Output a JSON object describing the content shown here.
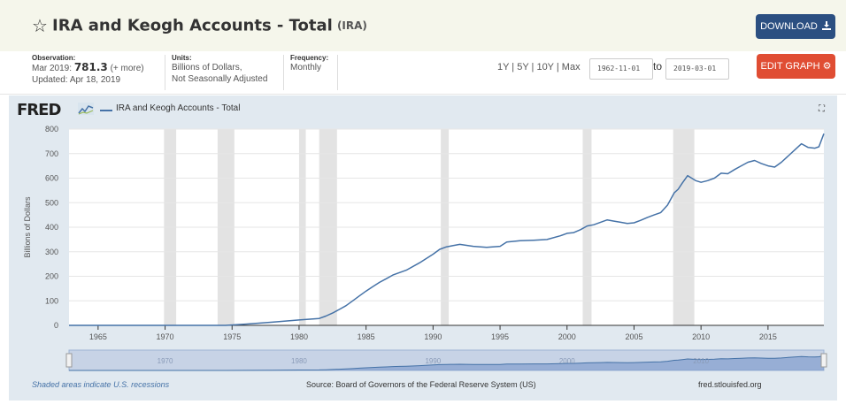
{
  "header": {
    "title": "IRA and Keogh Accounts - Total",
    "series_id": "(IRA)",
    "download_label": "DOWNLOAD"
  },
  "meta": {
    "observation_label": "Observation:",
    "observation_date": "Mar 2019:",
    "observation_value": "781.3",
    "observation_more": "(+ more)",
    "updated": "Updated: Apr 18, 2019",
    "units_label": "Units:",
    "units_line1": "Billions of Dollars,",
    "units_line2": "Not Seasonally Adjusted",
    "frequency_label": "Frequency:",
    "frequency_value": "Monthly"
  },
  "controls": {
    "range_links": "1Y | 5Y | 10Y | Max",
    "start_date": "1962-11-01",
    "to_label": "to",
    "end_date": "2019-03-01",
    "edit_label": "EDIT GRAPH"
  },
  "graph": {
    "logo": "FRED",
    "legend": "IRA and Keogh Accounts - Total"
  },
  "footer": {
    "recession_note": "Shaded areas indicate U.S. recessions",
    "source": "Source: Board of Governors of the Federal Reserve System (US)",
    "url": "fred.stlouisfed.org"
  },
  "colors": {
    "line": "#4572a7",
    "recession": "#e3e3e3",
    "download": "#2b4f81",
    "edit": "#e04d33"
  },
  "chart_data": {
    "type": "line",
    "ylabel": "Billions of Dollars",
    "xlim": [
      1962.83,
      2019.17
    ],
    "ylim": [
      0,
      800
    ],
    "yticks": [
      0,
      100,
      200,
      300,
      400,
      500,
      600,
      700,
      800
    ],
    "xticks": [
      1965,
      1970,
      1975,
      1980,
      1985,
      1990,
      1995,
      2000,
      2005,
      2010,
      2015
    ],
    "navigator_labels": [
      "1970",
      "1980",
      "1990",
      "2000",
      "2010"
    ],
    "recessions": [
      [
        1969.92,
        1970.83
      ],
      [
        1973.92,
        1975.17
      ],
      [
        1980.0,
        1980.5
      ],
      [
        1981.5,
        1982.83
      ],
      [
        1990.58,
        1991.17
      ],
      [
        2001.17,
        2001.83
      ],
      [
        2007.92,
        2009.5
      ]
    ],
    "series": [
      {
        "name": "IRA and Keogh Accounts - Total",
        "x": [
          1962.83,
          1974.5,
          1976,
          1978,
          1980,
          1981.5,
          1982.0,
          1982.5,
          1983.0,
          1983.5,
          1984.0,
          1984.5,
          1985.0,
          1985.5,
          1986.0,
          1986.5,
          1987.0,
          1987.5,
          1988.0,
          1989.0,
          1990.0,
          1990.5,
          1991.0,
          1991.5,
          1992.0,
          1993.0,
          1994.0,
          1995.0,
          1995.5,
          1996.5,
          1997.5,
          1998.5,
          1999.5,
          2000.0,
          2000.5,
          2001.0,
          2001.5,
          2002.0,
          2002.5,
          2003.0,
          2003.5,
          2004.0,
          2004.5,
          2005.0,
          2005.5,
          2006.0,
          2006.5,
          2007.0,
          2007.5,
          2008.0,
          2008.3,
          2008.6,
          2009.0,
          2009.3,
          2009.6,
          2010.0,
          2010.5,
          2011.0,
          2011.5,
          2012.0,
          2012.5,
          2013.0,
          2013.5,
          2014.0,
          2014.5,
          2015.0,
          2015.5,
          2016.0,
          2016.5,
          2017.0,
          2017.5,
          2018.0,
          2018.5,
          2018.8,
          2019.17
        ],
        "values": [
          0,
          0,
          5,
          13,
          22,
          28,
          38,
          50,
          65,
          80,
          100,
          120,
          140,
          158,
          175,
          190,
          205,
          215,
          225,
          255,
          290,
          310,
          320,
          325,
          330,
          322,
          318,
          322,
          340,
          345,
          347,
          350,
          365,
          375,
          378,
          390,
          405,
          410,
          420,
          430,
          425,
          420,
          415,
          418,
          428,
          440,
          450,
          460,
          490,
          540,
          555,
          580,
          610,
          600,
          590,
          583,
          590,
          600,
          620,
          618,
          635,
          650,
          665,
          672,
          660,
          650,
          645,
          665,
          690,
          715,
          740,
          725,
          722,
          728,
          781.3
        ]
      }
    ]
  }
}
